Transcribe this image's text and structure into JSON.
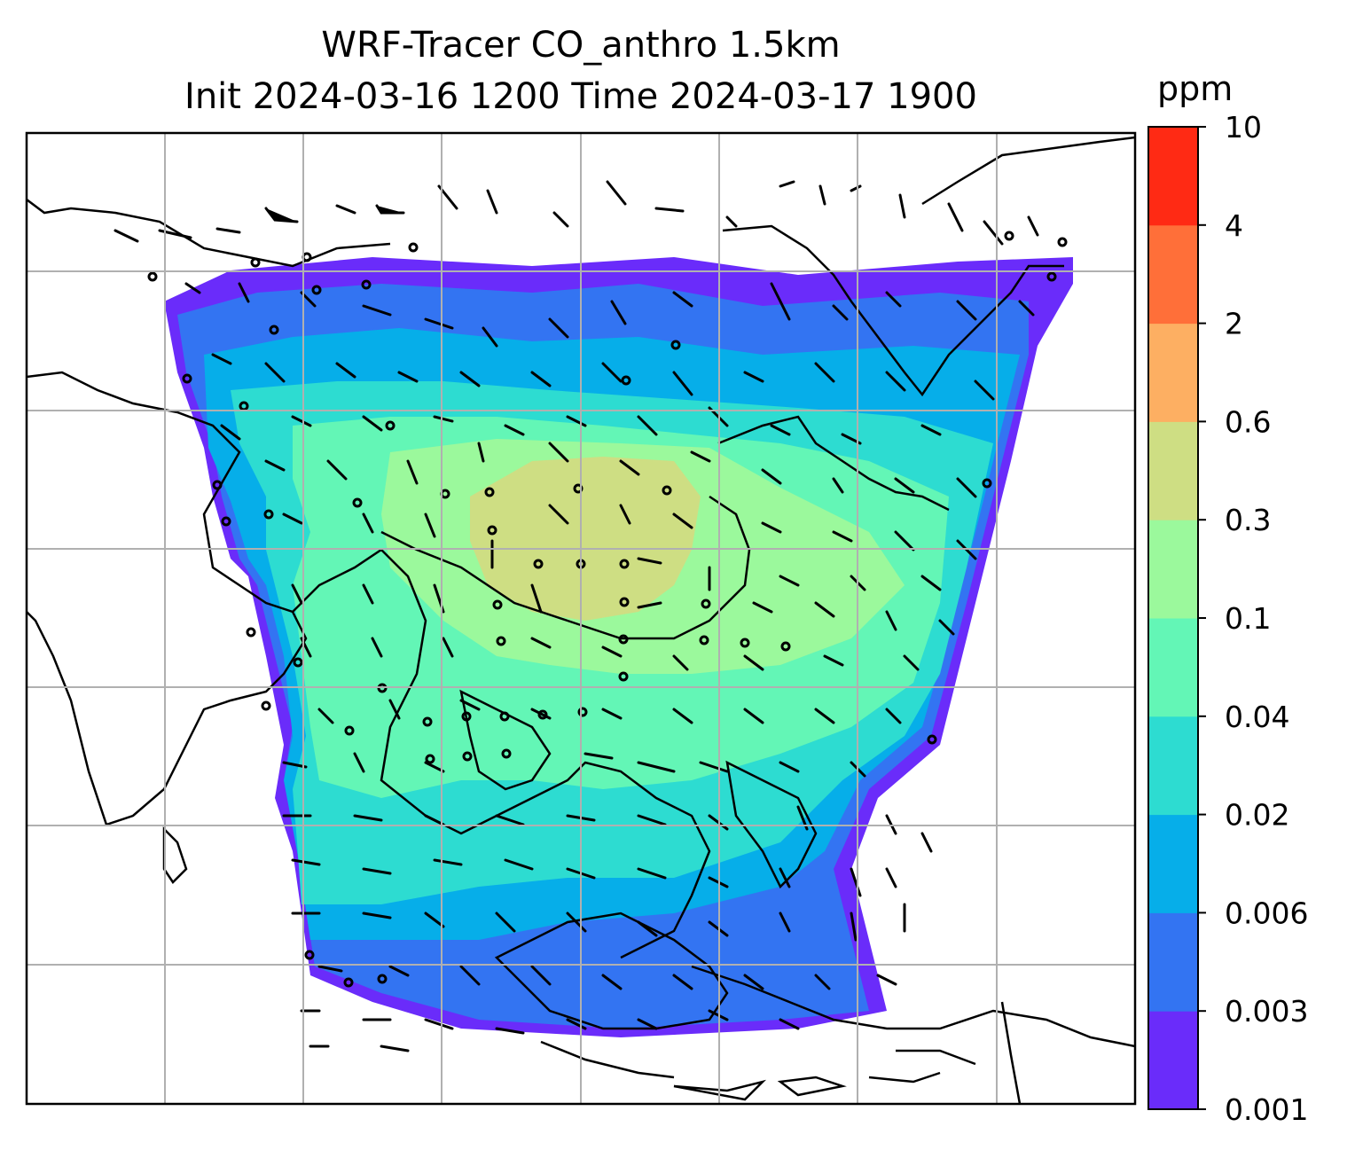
{
  "title": {
    "line1": "WRF-Tracer CO_anthro 1.5km",
    "line2": "Init 2024-03-16 1200 Time 2024-03-17 1900"
  },
  "colorbar": {
    "unit": "ppm",
    "levels": [
      "0.001",
      "0.003",
      "0.006",
      "0.02",
      "0.04",
      "0.1",
      "0.3",
      "0.6",
      "2",
      "4",
      "10"
    ],
    "colors": [
      "#6a2cfa",
      "#3374f2",
      "#06aee9",
      "#2ddcd1",
      "#63f6b6",
      "#9bf99c",
      "#cede83",
      "#fdaf62",
      "#ff6f39",
      "#ff2a14"
    ]
  },
  "map": {
    "gridlines": true,
    "coastline_color": "#000000",
    "grid_color": "#b0b0b0"
  }
}
